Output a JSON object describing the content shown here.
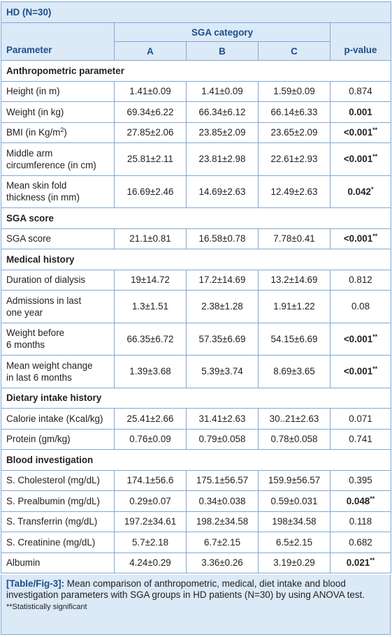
{
  "table": {
    "title": "HD (N=30)",
    "group_header": "SGA category",
    "columns": {
      "parameter": "Parameter",
      "a": "A",
      "b": "B",
      "c": "C",
      "pvalue": "p-value"
    },
    "sections": [
      {
        "title": "Anthropometric parameter",
        "rows": [
          {
            "label": "Height (in m)",
            "a": "1.41±0.09",
            "b": "1.41±0.09",
            "c": "1.59±0.09",
            "p": "0.874",
            "sig": false
          },
          {
            "label": "Weight (in kg)",
            "a": "69.34±6.22",
            "b": "66.34±6.12",
            "c": "66.14±6.33",
            "p": "0.001",
            "sig": true
          },
          {
            "label": "BMI (in Kg/m",
            "label_sup": "2",
            "label_end": ")",
            "a": "27.85±2.06",
            "b": "23.85±2.09",
            "c": "23.65±2.09",
            "p": "<0.001",
            "p_sup": "**",
            "sig": true
          },
          {
            "label": "Middle arm",
            "label2": "circumference (in cm)",
            "a": "25.81±2.11",
            "b": "23.81±2.98",
            "c": "22.61±2.93",
            "p": "<0.001",
            "p_sup": "**",
            "sig": true
          },
          {
            "label": "Mean skin fold",
            "label2": "thickness (in mm)",
            "a": "16.69±2.46",
            "b": "14.69±2.63",
            "c": "12.49±2.63",
            "p": "0.042",
            "p_sup": "*",
            "sig": true
          }
        ]
      },
      {
        "title": "SGA score",
        "rows": [
          {
            "label": "SGA score",
            "a": "21.1±0.81",
            "b": "16.58±0.78",
            "c": "7.78±0.41",
            "p": "<0.001",
            "p_sup": "**",
            "sig": true
          }
        ]
      },
      {
        "title": "Medical history",
        "rows": [
          {
            "label": "Duration of dialysis",
            "a": "19±14.72",
            "b": "17.2±14.69",
            "c": "13.2±14.69",
            "p": "0.812",
            "sig": false
          },
          {
            "label": "Admissions in last",
            "label2": "one year",
            "a": "1.3±1.51",
            "b": "2.38±1.28",
            "c": "1.91±1.22",
            "p": "0.08",
            "sig": false
          },
          {
            "label": "Weight before",
            "label2": "6 months",
            "a": "66.35±6.72",
            "b": "57.35±6.69",
            "c": "54.15±6.69",
            "p": "<0.001",
            "p_sup": "**",
            "sig": true
          },
          {
            "label": "Mean weight change",
            "label2": "in last 6 months",
            "a": "1.39±3.68",
            "b": "5.39±3.74",
            "c": "8.69±3.65",
            "p": "<0.001",
            "p_sup": "**",
            "sig": true
          }
        ]
      },
      {
        "title": "Dietary intake history",
        "rows": [
          {
            "label": "Calorie intake (Kcal/kg)",
            "a": "25.41±2.66",
            "b": "31.41±2.63",
            "c": "30..21±2.63",
            "p": "0.071",
            "sig": false
          },
          {
            "label": "Protein (gm/kg)",
            "a": "0.76±0.09",
            "b": "0.79±0.058",
            "c": "0.78±0.058",
            "p": "0.741",
            "sig": false
          }
        ]
      },
      {
        "title": "Blood investigation",
        "rows": [
          {
            "label": "S. Cholesterol (mg/dL)",
            "a": "174.1±56.6",
            "b": "175.1±56.57",
            "c": "159.9±56.57",
            "p": "0.395",
            "sig": false
          },
          {
            "label": "S. Prealbumin (mg/dL)",
            "a": "0.29±0.07",
            "b": "0.34±0.038",
            "c": "0.59±0.031",
            "p": "0.048",
            "p_sup": "**",
            "sig": true
          },
          {
            "label": "S. Transferrin (mg/dL)",
            "a": "197.2±34.61",
            "b": "198.2±34.58",
            "c": "198±34.58",
            "p": "0.118",
            "sig": false
          },
          {
            "label": "S. Creatinine (mg/dL)",
            "a": "5.7±2.18",
            "b": "6.7±2.15",
            "c": "6.5±2.15",
            "p": "0.682",
            "sig": false
          },
          {
            "label": "Albumin",
            "a": "4.24±0.29",
            "b": "3.36±0.26",
            "c": "3.19±0.29",
            "p": "0.021",
            "p_sup": "**",
            "sig": true
          }
        ]
      }
    ]
  },
  "caption": {
    "label": "[Table/Fig-3]:",
    "text": " Mean comparison of anthropometric, medical, diet intake and blood investigation parameters with SGA groups in HD patients (N=30) by using ANOVA test.",
    "note": "**Statistically significant"
  }
}
